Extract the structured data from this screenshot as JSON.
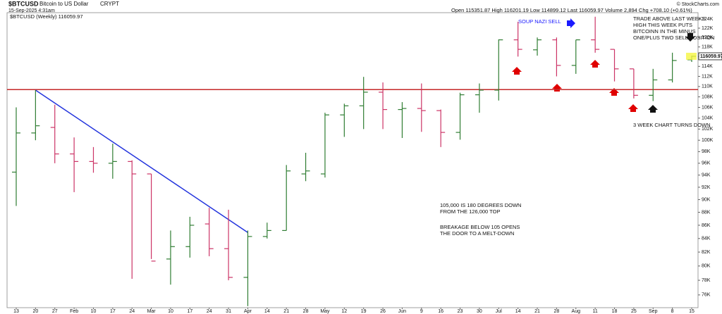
{
  "header": {
    "symbol": "$BTCUSD",
    "name": "Bitcoin to US Dollar",
    "exchange": "CRYPT",
    "date": "15-Sep-2025 4:31am",
    "quote": "Open 115351.87 High 116201.19 Low 114899.12 Last 116059.97 Volume 2,894 Chg +708.10 (+0.61%)",
    "copyright": "© StockCharts.com"
  },
  "chart_data": {
    "type": "ohlc",
    "legend": "$BTCUSD (Weekly) 116059.97",
    "categories": [
      "13",
      "20",
      "27",
      "Feb",
      "10",
      "17",
      "24",
      "Mar",
      "10",
      "17",
      "24",
      "31",
      "Apr",
      "14",
      "21",
      "28",
      "May",
      "12",
      "19",
      "26",
      "Jun",
      "9",
      "16",
      "23",
      "30",
      "Jul",
      "14",
      "21",
      "28",
      "Aug",
      "11",
      "18",
      "25",
      "Sep",
      "8",
      "15"
    ],
    "open": [
      94500,
      101300,
      102300,
      97600,
      96300,
      96000,
      96300,
      94200,
      81000,
      82800,
      86200,
      82500,
      78400,
      84300,
      85200,
      94200,
      94200,
      104600,
      106300,
      108900,
      105600,
      105800,
      105400,
      101400,
      108400,
      109300,
      119500,
      117400,
      119500,
      114200,
      119500,
      117500,
      113500,
      108300,
      111300,
      115351.87
    ],
    "high": [
      106000,
      109300,
      106500,
      100500,
      98800,
      99400,
      96500,
      94200,
      85200,
      87300,
      88700,
      88400,
      85200,
      86400,
      95700,
      97800,
      105000,
      106700,
      111900,
      110800,
      107000,
      110600,
      105600,
      108800,
      110600,
      119600,
      123400,
      120000,
      120000,
      119500,
      124500,
      117500,
      113500,
      113500,
      116800,
      116201.19
    ],
    "low": [
      89000,
      100000,
      96000,
      91200,
      94400,
      93400,
      78200,
      81000,
      77400,
      81200,
      81400,
      78000,
      74500,
      84000,
      85200,
      93000,
      93600,
      100600,
      102000,
      102000,
      100400,
      101500,
      98800,
      100100,
      105000,
      107300,
      116000,
      116200,
      112000,
      112500,
      116800,
      111000,
      107700,
      107200,
      110800,
      114899.12
    ],
    "close": [
      101300,
      102600,
      97600,
      96300,
      96000,
      96300,
      94200,
      80700,
      82800,
      86000,
      82500,
      78400,
      84300,
      85200,
      94700,
      94700,
      104600,
      106300,
      108900,
      105600,
      105800,
      105400,
      101400,
      108400,
      109300,
      119500,
      117500,
      119500,
      114200,
      119500,
      117500,
      113500,
      108300,
      111300,
      115200,
      116059.97
    ],
    "up_color": "#2f7d32",
    "down_color": "#cc3366",
    "log_scale": true,
    "ylim": [
      74300,
      125400
    ],
    "yticks": [
      {
        "value": 76000,
        "label": "76K"
      },
      {
        "value": 78000,
        "label": "78K"
      },
      {
        "value": 80000,
        "label": "80K"
      },
      {
        "value": 82000,
        "label": "82K"
      },
      {
        "value": 84000,
        "label": "84K"
      },
      {
        "value": 86000,
        "label": "86K"
      },
      {
        "value": 88000,
        "label": "88K"
      },
      {
        "value": 90000,
        "label": "90K"
      },
      {
        "value": 92000,
        "label": "92K"
      },
      {
        "value": 94000,
        "label": "94K"
      },
      {
        "value": 96000,
        "label": "96K"
      },
      {
        "value": 98000,
        "label": "98K"
      },
      {
        "value": 100000,
        "label": "100K"
      },
      {
        "value": 102000,
        "label": "102K"
      },
      {
        "value": 104000,
        "label": "104K"
      },
      {
        "value": 106000,
        "label": "106K"
      },
      {
        "value": 108000,
        "label": "108K"
      },
      {
        "value": 110000,
        "label": "110K"
      },
      {
        "value": 112000,
        "label": "112K"
      },
      {
        "value": 114000,
        "label": "114K"
      },
      {
        "value": 116000,
        "label": "116K"
      },
      {
        "value": 118000,
        "label": "118K"
      },
      {
        "value": 120000,
        "label": "120K"
      },
      {
        "value": 122000,
        "label": "122K"
      },
      {
        "value": 124000,
        "label": "124K"
      }
    ],
    "last_value": {
      "value": 116059.97,
      "label": "116059.97"
    },
    "hline": {
      "value": 109400,
      "color": "#c62828"
    },
    "trendline": {
      "from": 109300,
      "to": 84900,
      "color": "#2233dd"
    },
    "annotations": [
      {
        "color": "#1a1aff",
        "lines": [
          "SOUP NAZI SELL"
        ]
      },
      {
        "color": "#111111",
        "lines": [
          "TRADE ABOVE LAST WEEKS",
          "HIGH THIS WEEK PUTS",
          "BITCOINN IN THE MINUS",
          "ONE/PLUS TWO SELL POSITION"
        ]
      },
      {
        "color": "#111111",
        "lines": [
          "3 WEEK CHART TURNS DOWN"
        ]
      },
      {
        "color": "#111111",
        "lines": [
          "105,000 IS 180 DEGREES DOWN",
          "FROM THE 126,000 TOP"
        ]
      },
      {
        "color": "#111111",
        "lines": [
          "BREAKAGE BELOW 105 OPENS",
          "THE DOOR TO A MELT-DOWN"
        ]
      }
    ]
  }
}
